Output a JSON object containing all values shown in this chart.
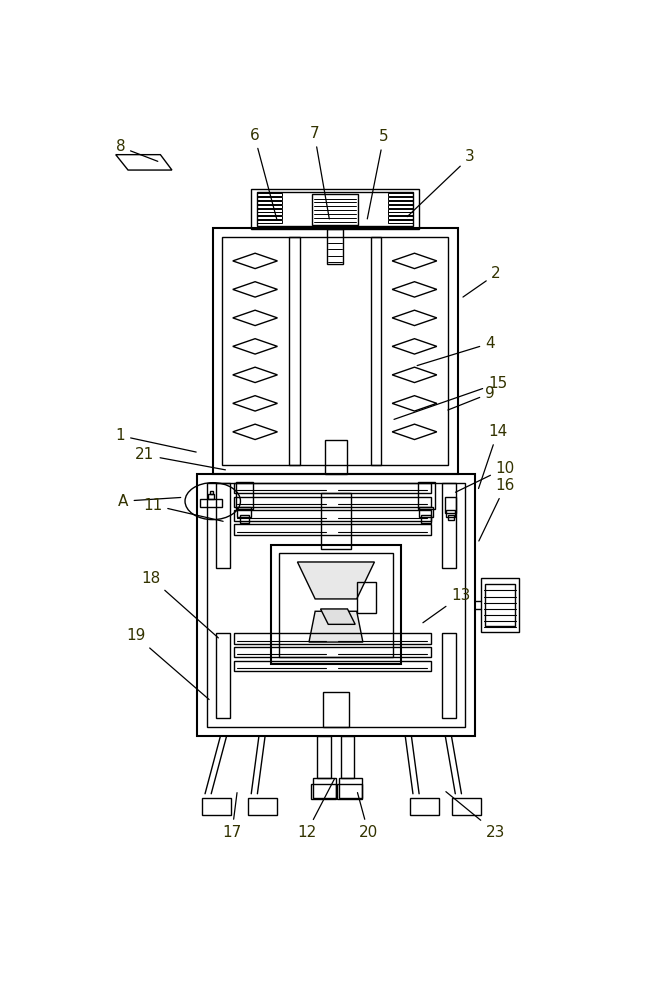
{
  "bg_color": "#ffffff",
  "line_color": "#000000",
  "fig_width": 6.54,
  "fig_height": 10.0,
  "dpi": 100
}
